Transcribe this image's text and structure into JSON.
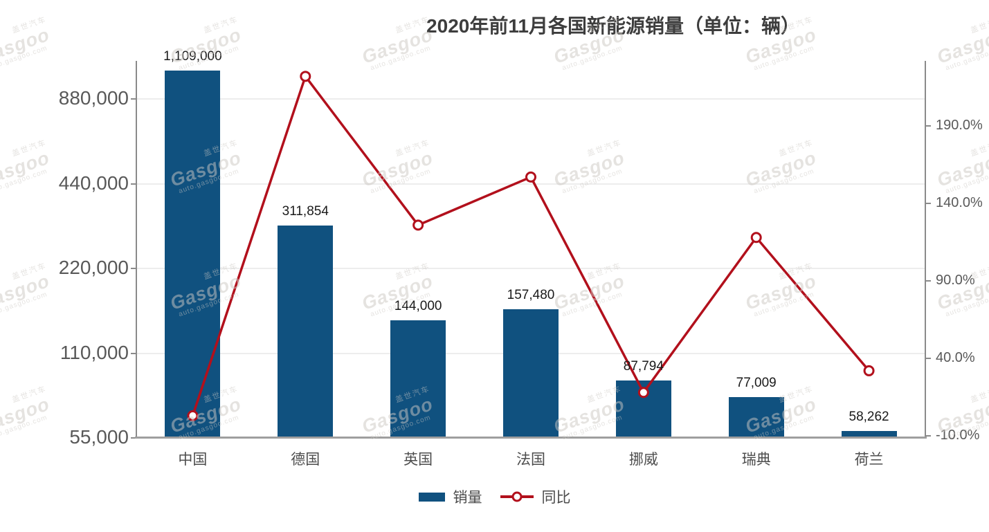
{
  "title": "2020年前11月各国新能源销量（单位：辆）",
  "legend": {
    "sales_label": "销量",
    "yoy_label": "同比"
  },
  "colors": {
    "bar": "#10517f",
    "line": "#b2101c",
    "axis": "#8a8a8a",
    "baseline": "#9e9e9e",
    "grid": "#ededed",
    "tick_text": "#595959",
    "category_text": "#4d4d4d",
    "data_label_text": "#1a1a1a",
    "title_text": "#3d3d3d",
    "marker_fill": "#ffffff"
  },
  "watermark": {
    "cn": "盖世汽车",
    "brand": "Gasgoo",
    "site": "auto.gasgoo.com"
  },
  "chart_data": {
    "type": "bar",
    "combo": "bar+line dual-axis",
    "title": "2020年前11月各国新能源销量（单位：辆）",
    "categories": [
      "中国",
      "德国",
      "英国",
      "法国",
      "挪威",
      "瑞典",
      "荷兰"
    ],
    "series": [
      {
        "name": "销量",
        "type": "bar",
        "axis": "left",
        "values": [
          1109000,
          311854,
          144000,
          157480,
          87794,
          77009,
          58262
        ],
        "labels": [
          "1,109,000",
          "311,854",
          "144,000",
          "157,480",
          "87,794",
          "77,009",
          "58,262"
        ]
      },
      {
        "name": "同比",
        "type": "line",
        "axis": "right",
        "unit": "%",
        "values": [
          3,
          222,
          126,
          157,
          18,
          118,
          32
        ],
        "note": "estimated from marker positions; no data labels shown"
      }
    ],
    "left_axis": {
      "scale": "log2",
      "ticks": [
        {
          "value": 880000,
          "label": "880,000"
        },
        {
          "value": 440000,
          "label": "440,000"
        },
        {
          "value": 220000,
          "label": "220,000"
        },
        {
          "value": 110000,
          "label": "110,000"
        },
        {
          "value": 55000,
          "label": "55,000"
        }
      ]
    },
    "right_axis": {
      "scale": "linear",
      "range": [
        -10,
        240
      ],
      "ticks": [
        {
          "value": 190,
          "label": "190.0%"
        },
        {
          "value": 140,
          "label": "140.0%"
        },
        {
          "value": 90,
          "label": "90.0%"
        },
        {
          "value": 40,
          "label": "40.0%"
        },
        {
          "value": -10,
          "label": "-10.0%"
        }
      ]
    },
    "grid": "horizontal, at left-axis ticks",
    "legend_position": "bottom-center"
  }
}
